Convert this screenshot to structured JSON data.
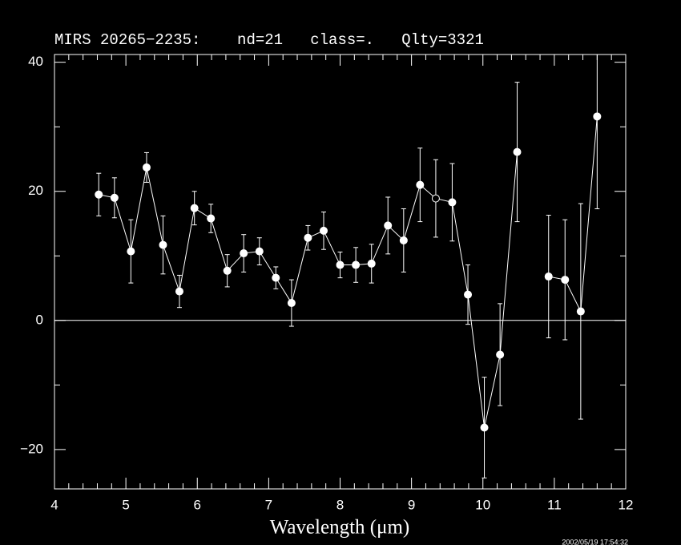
{
  "chart_data": {
    "type": "line",
    "title": "MIRS 20265−2235:    nd=21   class=.   Qlty=3321",
    "xlabel": "Wavelength (μm)",
    "timestamp": "2002/05/19 17:54:32",
    "color": "#ffffff",
    "x": [
      4.62,
      4.84,
      5.07,
      5.29,
      5.52,
      5.75,
      5.96,
      6.19,
      6.42,
      6.65,
      6.87,
      7.1,
      7.32,
      7.55,
      7.77,
      8.0,
      8.22,
      8.44,
      8.67,
      8.89,
      9.12,
      9.34,
      9.57,
      9.79,
      10.02,
      10.24,
      10.48,
      null,
      10.92,
      11.15,
      11.37,
      11.6
    ],
    "values": [
      19.5,
      19.0,
      10.7,
      23.7,
      11.7,
      4.5,
      17.4,
      15.8,
      7.7,
      10.4,
      10.7,
      6.6,
      2.7,
      12.8,
      13.9,
      8.6,
      8.6,
      8.8,
      14.7,
      12.4,
      21.0,
      18.9,
      18.3,
      4.0,
      -16.6,
      -5.3,
      26.1,
      null,
      6.8,
      6.3,
      1.4,
      31.6
    ],
    "errors": [
      3.3,
      3.1,
      4.9,
      2.3,
      4.5,
      2.5,
      2.6,
      2.2,
      2.5,
      2.9,
      2.1,
      1.7,
      3.6,
      1.9,
      2.9,
      2.0,
      2.7,
      3.0,
      4.4,
      4.9,
      5.7,
      6.0,
      6.0,
      4.6,
      7.8,
      7.9,
      10.8,
      null,
      9.5,
      9.3,
      16.7,
      14.3
    ],
    "open_points": [
      21
    ],
    "xlim": [
      4,
      12
    ],
    "ylim": [
      -26.1,
      41.2
    ],
    "xticks": [
      4,
      5,
      6,
      7,
      8,
      9,
      10,
      11,
      12
    ],
    "yticks": [
      {
        "value": -20,
        "label": "−20"
      },
      0,
      20,
      40
    ],
    "xminor": [
      4.2,
      4.4,
      4.6,
      4.8,
      5.2,
      5.4,
      5.6,
      5.8,
      6.2,
      6.4,
      6.6,
      6.8,
      7.2,
      7.4,
      7.6,
      7.8,
      8.2,
      8.4,
      8.6,
      8.8,
      9.2,
      9.4,
      9.6,
      9.8,
      10.2,
      10.4,
      10.6,
      10.8,
      11.2,
      11.4,
      11.6,
      11.8
    ],
    "yminor": [
      -10,
      10,
      30
    ],
    "zero_line": true
  }
}
